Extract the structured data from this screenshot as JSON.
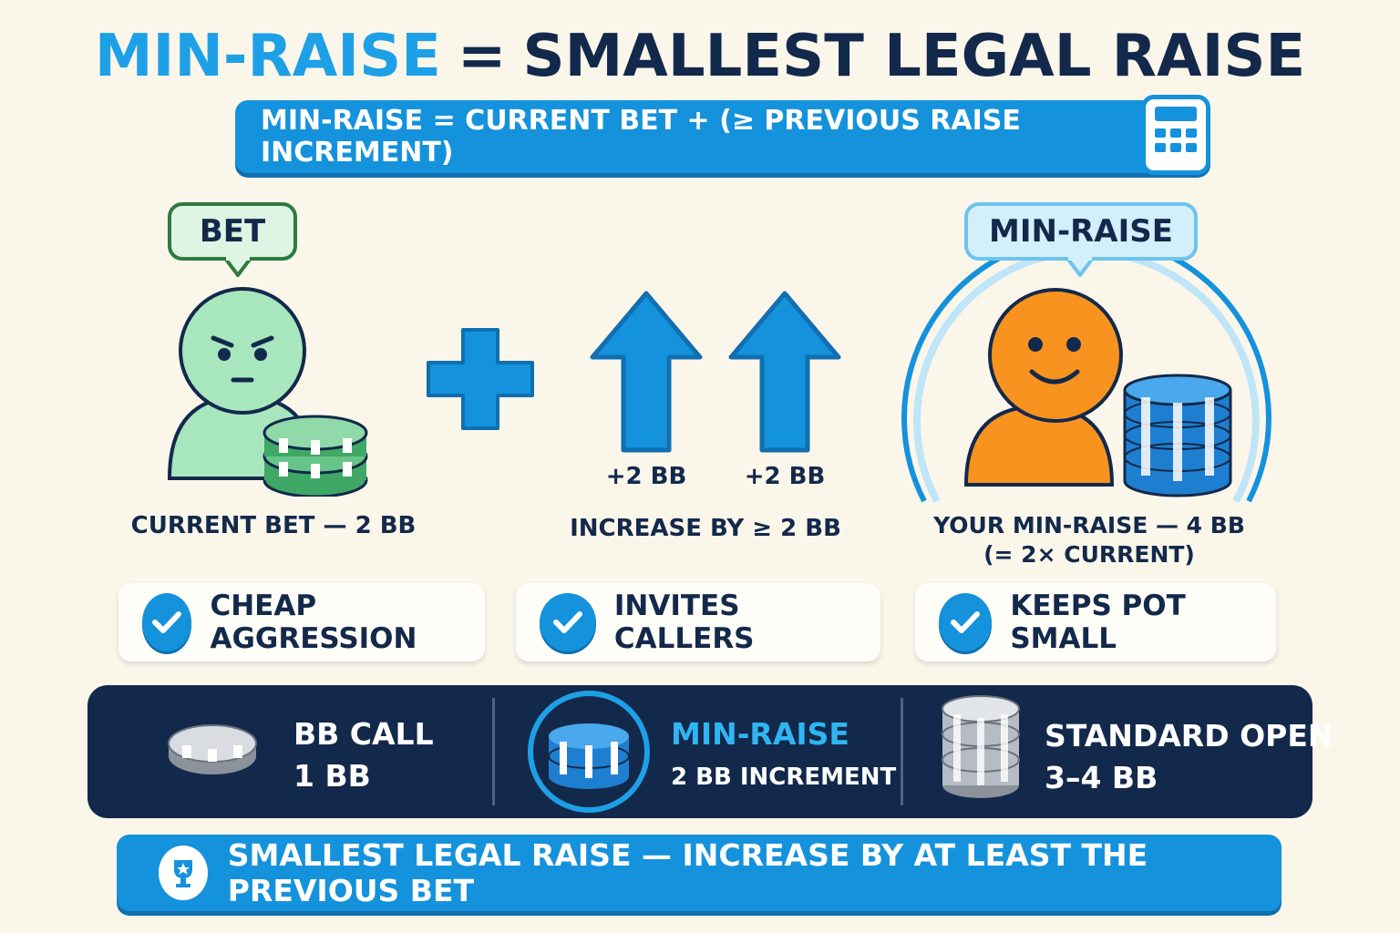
{
  "title": {
    "accent": "MIN-RAISE",
    "equals": "=",
    "rest": "SMALLEST LEGAL RAISE"
  },
  "formula": {
    "text": "MIN-RAISE = CURRENT BET + (≥ PREVIOUS RAISE INCREMENT)",
    "icon": "calculator-icon"
  },
  "bet_panel": {
    "bubble": "BET",
    "caption": "CURRENT BET — 2 BB",
    "figure_color": "#a8e6bd",
    "chip_color": "#3fa866"
  },
  "increase_panel": {
    "arrow_labels": [
      "+2 BB",
      "+2 BB"
    ],
    "caption": "INCREASE BY ≥ 2 BB",
    "accent": "#1592dc"
  },
  "minraise_panel": {
    "bubble": "MIN-RAISE",
    "caption_line1": "YOUR MIN-RAISE — 4 BB",
    "caption_line2": "(= 2× CURRENT)",
    "figure_color": "#f7931e"
  },
  "benefits": [
    {
      "label": "CHEAP AGGRESSION"
    },
    {
      "label": "INVITES CALLERS"
    },
    {
      "label": "KEEPS POT SMALL"
    }
  ],
  "band": {
    "items": [
      {
        "title": "BB CALL",
        "sub": "1 BB"
      },
      {
        "title": "MIN-RAISE",
        "sub": "2 BB INCREMENT"
      },
      {
        "title": "STANDARD OPEN",
        "sub": "3–4 BB"
      }
    ]
  },
  "footer": {
    "text": "SMALLEST LEGAL RAISE — INCREASE BY AT LEAST THE PREVIOUS BET",
    "icon": "trophy-icon"
  }
}
